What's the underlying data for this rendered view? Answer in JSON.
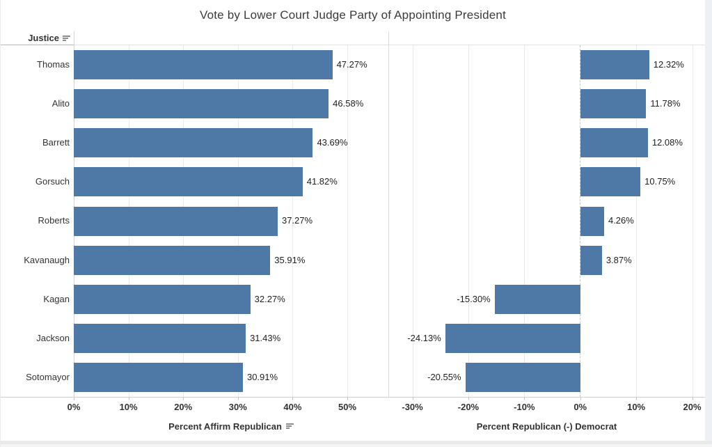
{
  "title": "Vote by Lower Court Judge Party of Appointing President",
  "row_header": {
    "label": "Justice",
    "sort_icon": "sort-descending-icon"
  },
  "chart_data": {
    "type": "bar",
    "orientation": "horizontal",
    "bar_color": "#4e79a7",
    "grid": true,
    "legend": "none",
    "categories": [
      "Thomas",
      "Alito",
      "Barrett",
      "Gorsuch",
      "Roberts",
      "Kavanaugh",
      "Kagan",
      "Jackson",
      "Sotomayor"
    ],
    "label_format": "two-decimal-percent",
    "panels": [
      {
        "name": "Percent Affirm Republican",
        "has_sort_icon": true,
        "values": [
          47.27,
          46.58,
          43.69,
          41.82,
          37.27,
          35.91,
          32.27,
          31.43,
          30.91
        ],
        "value_labels": [
          "47.27%",
          "46.58%",
          "43.69%",
          "41.82%",
          "37.27%",
          "35.91%",
          "32.27%",
          "31.43%",
          "30.91%"
        ],
        "axis_ticks": [
          0,
          10,
          20,
          30,
          40,
          50
        ],
        "axis_tick_labels": [
          "0%",
          "10%",
          "20%",
          "30%",
          "40%",
          "50%"
        ],
        "axis_range": [
          0,
          57.5
        ],
        "zero_line": false
      },
      {
        "name": "Percent Republican (-) Democrat",
        "has_sort_icon": false,
        "values": [
          12.32,
          11.78,
          12.08,
          10.75,
          4.26,
          3.87,
          -15.3,
          -24.13,
          -20.55
        ],
        "value_labels": [
          "12.32%",
          "11.78%",
          "12.08%",
          "10.75%",
          "4.26%",
          "3.87%",
          "-15.30%",
          "-24.13%",
          "-20.55%"
        ],
        "axis_ticks": [
          -30,
          -20,
          -10,
          0,
          10,
          20
        ],
        "axis_tick_labels": [
          "-30%",
          "-20%",
          "-10%",
          "0%",
          "10%",
          "20%"
        ],
        "axis_range": [
          -34.3,
          22.3
        ],
        "zero_line": true
      }
    ]
  }
}
